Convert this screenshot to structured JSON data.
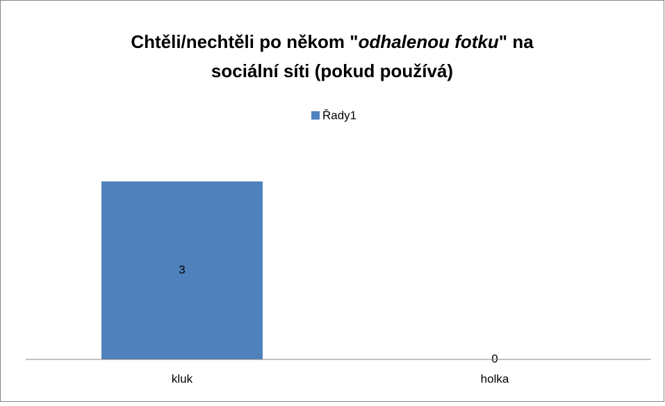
{
  "chart_data": {
    "type": "bar",
    "title": [
      "Chtěli/nechtěli po někom \"",
      "odhalenou fotku",
      "\" na",
      "sociální síti (pokud používá)"
    ],
    "categories": [
      "kluk",
      "holka"
    ],
    "series": [
      {
        "name": "Řady1",
        "color": "#4f81bd",
        "values": [
          3,
          0
        ]
      }
    ],
    "legend": "top"
  }
}
